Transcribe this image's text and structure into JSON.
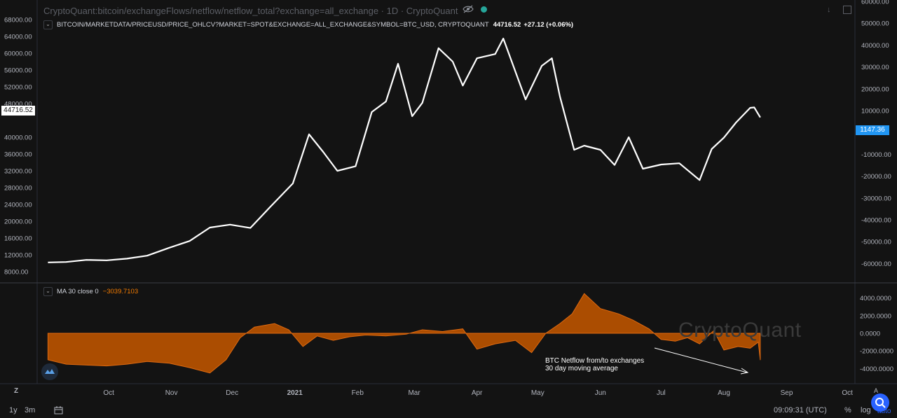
{
  "header": {
    "title": "CryptoQuant:bitcoin/exchangeFlows/netflow/netflow_total?exchange=all_exchange · 1D · CryptoQuant",
    "symbol_line": "BITCOIN/MARKETDATA/PRICEUSD/PRICE_OHLCV?MARKET=SPOT&EXCHANGE=ALL_EXCHANGE&SYMBOL=BTC_USD, CRYPTOQUANT",
    "last_value": "44716.52",
    "change": "+27.12 (+0.06%)",
    "collapse_glyph": "⌄"
  },
  "sub_pane": {
    "label": "MA 30 close 0",
    "value": "−3039.7103",
    "collapse_glyph": "⌄"
  },
  "price_tag": "44716.52",
  "netflow_tag": "1147.36",
  "watermark": "CryptoQuant",
  "annotation": "BTC Netflow from/to exchanges\n30 day moving average",
  "left_axis_ticks": [
    "68000.00",
    "64000.00",
    "60000.00",
    "56000.00",
    "52000.00",
    "48000.00",
    "40000.00",
    "36000.00",
    "32000.00",
    "28000.00",
    "24000.00",
    "20000.00",
    "16000.00",
    "12000.00",
    "8000.00"
  ],
  "right_axis_ticks": [
    "60000.00",
    "50000.00",
    "40000.00",
    "30000.00",
    "20000.00",
    "10000.00",
    "-10000.00",
    "-20000.00",
    "-30000.00",
    "-40000.00",
    "-50000.00",
    "-60000.00"
  ],
  "sub_axis_ticks": [
    "4000.0000",
    "2000.0000",
    "0.0000",
    "-2000.0000",
    "-4000.0000"
  ],
  "x_axis_ticks": [
    "Oct",
    "Nov",
    "Dec",
    "2021",
    "Feb",
    "Mar",
    "Apr",
    "May",
    "Jun",
    "Jul",
    "Aug",
    "Sep",
    "Oct"
  ],
  "bottom_bar": {
    "range_1y": "1y",
    "range_3m": "3m",
    "time": "09:09:31 (UTC)",
    "percent": "%",
    "log": "log",
    "auto": "auto",
    "z": "Z",
    "a": "A"
  },
  "colors": {
    "background": "#131313",
    "price_line": "#ffffff",
    "netflow_fill": "#b35000",
    "netflow_line": "#e06a10",
    "netflow_tag": "#2196f3",
    "accent": "#2962ff"
  },
  "chart_data": [
    {
      "type": "line",
      "series": [
        {
          "name": "BITCOIN/MARKETDATA/PRICEUSD/PRICE_OHLCV?MARKET=SPOT&EXCHANGE=ALL_EXCHANGE&SYMBOL=BTC_USD, CRYPTOQUANT",
          "points": [
            [
              "2020-09-01",
              10200
            ],
            [
              "2020-09-10",
              10300
            ],
            [
              "2020-09-20",
              10800
            ],
            [
              "2020-09-30",
              10700
            ],
            [
              "2020-10-10",
              11100
            ],
            [
              "2020-10-20",
              11800
            ],
            [
              "2020-10-31",
              13700
            ],
            [
              "2020-11-10",
              15300
            ],
            [
              "2020-11-20",
              18500
            ],
            [
              "2020-11-30",
              19200
            ],
            [
              "2020-12-10",
              18400
            ],
            [
              "2020-12-20",
              23500
            ],
            [
              "2020-12-31",
              29000
            ],
            [
              "2021-01-08",
              40700
            ],
            [
              "2021-01-15",
              36500
            ],
            [
              "2021-01-22",
              32000
            ],
            [
              "2021-01-31",
              33100
            ],
            [
              "2021-02-08",
              46000
            ],
            [
              "2021-02-15",
              48500
            ],
            [
              "2021-02-21",
              57500
            ],
            [
              "2021-02-28",
              45000
            ],
            [
              "2021-03-05",
              48200
            ],
            [
              "2021-03-13",
              61200
            ],
            [
              "2021-03-20",
              58000
            ],
            [
              "2021-03-25",
              52300
            ],
            [
              "2021-04-01",
              58800
            ],
            [
              "2021-04-10",
              59800
            ],
            [
              "2021-04-14",
              63500
            ],
            [
              "2021-04-25",
              49000
            ],
            [
              "2021-05-03",
              57000
            ],
            [
              "2021-05-08",
              58800
            ],
            [
              "2021-05-12",
              49700
            ],
            [
              "2021-05-19",
              37000
            ],
            [
              "2021-05-24",
              38000
            ],
            [
              "2021-06-01",
              37000
            ],
            [
              "2021-06-08",
              33400
            ],
            [
              "2021-06-15",
              40000
            ],
            [
              "2021-06-22",
              32500
            ],
            [
              "2021-07-01",
              33500
            ],
            [
              "2021-07-10",
              33800
            ],
            [
              "2021-07-20",
              29800
            ],
            [
              "2021-07-26",
              37200
            ],
            [
              "2021-08-01",
              39900
            ],
            [
              "2021-08-07",
              43500
            ],
            [
              "2021-08-14",
              47000
            ],
            [
              "2021-08-16",
              47100
            ],
            [
              "2021-08-19",
              44716.52
            ]
          ]
        }
      ],
      "left_axis_range": [
        6000,
        70000
      ]
    },
    {
      "type": "area",
      "series": [
        {
          "name": "MA 30 close 0",
          "points": [
            [
              "2020-09-01",
              -3000
            ],
            [
              "2020-09-10",
              -3500
            ],
            [
              "2020-09-20",
              -3600
            ],
            [
              "2020-09-30",
              -3700
            ],
            [
              "2020-10-10",
              -3500
            ],
            [
              "2020-10-20",
              -3200
            ],
            [
              "2020-10-31",
              -3400
            ],
            [
              "2020-11-10",
              -3900
            ],
            [
              "2020-11-20",
              -4500
            ],
            [
              "2020-11-28",
              -3000
            ],
            [
              "2020-12-05",
              -500
            ],
            [
              "2020-12-12",
              700
            ],
            [
              "2020-12-22",
              1100
            ],
            [
              "2020-12-29",
              400
            ],
            [
              "2021-01-05",
              -1500
            ],
            [
              "2021-01-12",
              -300
            ],
            [
              "2021-01-20",
              -800
            ],
            [
              "2021-01-28",
              -400
            ],
            [
              "2021-02-05",
              -200
            ],
            [
              "2021-02-15",
              -300
            ],
            [
              "2021-02-25",
              -100
            ],
            [
              "2021-03-05",
              400
            ],
            [
              "2021-03-15",
              200
            ],
            [
              "2021-03-25",
              500
            ],
            [
              "2021-04-01",
              -1800
            ],
            [
              "2021-04-10",
              -1200
            ],
            [
              "2021-04-20",
              -800
            ],
            [
              "2021-04-28",
              -2200
            ],
            [
              "2021-05-05",
              0
            ],
            [
              "2021-05-12",
              1100
            ],
            [
              "2021-05-18",
              2200
            ],
            [
              "2021-05-24",
              4500
            ],
            [
              "2021-06-01",
              2800
            ],
            [
              "2021-06-10",
              2200
            ],
            [
              "2021-06-17",
              1500
            ],
            [
              "2021-06-25",
              500
            ],
            [
              "2021-07-01",
              -700
            ],
            [
              "2021-07-08",
              -900
            ],
            [
              "2021-07-14",
              -500
            ],
            [
              "2021-07-20",
              -1200
            ],
            [
              "2021-07-27",
              300
            ],
            [
              "2021-08-01",
              -1900
            ],
            [
              "2021-08-08",
              -1500
            ],
            [
              "2021-08-14",
              -1700
            ],
            [
              "2021-08-18",
              -1000
            ],
            [
              "2021-08-19",
              -3039.71
            ]
          ]
        }
      ],
      "y_range": [
        -5000,
        5000
      ]
    }
  ]
}
